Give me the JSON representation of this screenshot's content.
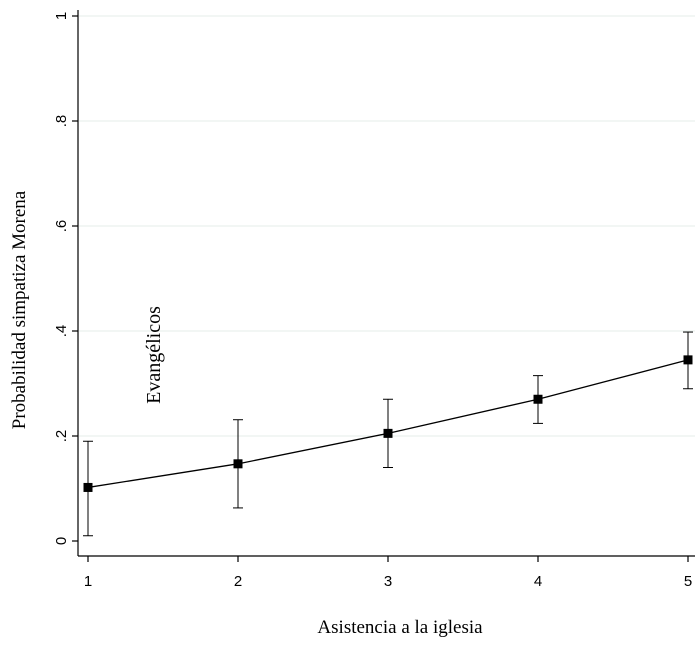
{
  "chart_data": {
    "type": "line",
    "title": "",
    "xlabel": "Asistencia a la iglesia",
    "ylabel": "Probabilidad simpatiza Morena",
    "annotation": "Evangélicos",
    "x_ticks": [
      "1",
      "2",
      "3",
      "4",
      "5"
    ],
    "y_ticks": [
      "0",
      ".2",
      ".4",
      ".6",
      ".8",
      "1"
    ],
    "xlim": [
      1,
      5
    ],
    "ylim": [
      0,
      1
    ],
    "grid": true,
    "series": [
      {
        "x": [
          1,
          2,
          3,
          4,
          5
        ],
        "y": [
          0.102,
          0.147,
          0.205,
          0.27,
          0.345
        ],
        "ci_low": [
          0.01,
          0.063,
          0.14,
          0.224,
          0.29
        ],
        "ci_high": [
          0.19,
          0.231,
          0.27,
          0.315,
          0.398
        ]
      }
    ],
    "colors": {
      "line": "#000000",
      "grid": "#e4ece9",
      "axis": "#000000"
    }
  }
}
